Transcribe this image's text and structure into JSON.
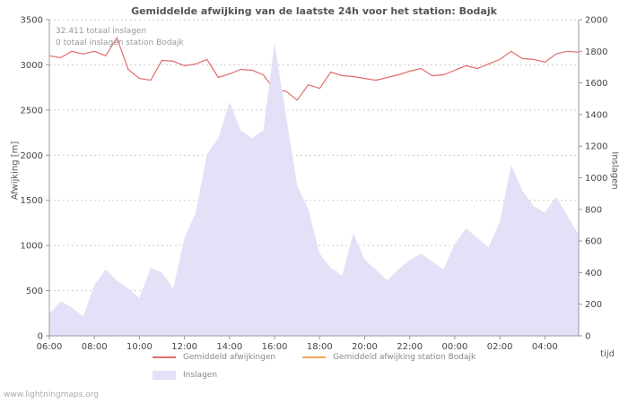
{
  "page": {
    "footer": "www.lightningmaps.org"
  },
  "chart": {
    "title": "Gemiddelde afwijking van de laatste 24h voor het station: Bodajk",
    "annotation_line1": "32.411 totaal inslagen",
    "annotation_line2": "0 totaal inslagen station Bodajk",
    "y_left_label": "Afwijking  [m]",
    "y_right_label": "Inslagen",
    "x_label": "tijd",
    "colors": {
      "deviation_line": "#e06c6c",
      "station_line": "#eda55f",
      "strikes_area": "#e2e1f7",
      "grid": "#cccccc",
      "spine": "#999999",
      "tick_text": "#444444"
    },
    "legend": [
      {
        "label": "Gemiddeld afwijkingen",
        "swatch": "line",
        "color": "#e06c6c"
      },
      {
        "label": "Gemiddeld afwijking station Bodajk",
        "swatch": "line",
        "color": "#eda55f"
      },
      {
        "label": "Inslagen",
        "swatch": "area",
        "color": "#e2e1f7"
      }
    ]
  },
  "chart_data": {
    "type": "line+area",
    "title": "Gemiddelde afwijking van de laatste 24h voor het station: Bodajk",
    "xlabel": "tijd",
    "ylabel_left": "Afwijking [m]",
    "ylabel_right": "Inslagen",
    "y_left": {
      "min": 0,
      "max": 3500,
      "ticks": [
        0,
        500,
        1000,
        1500,
        2000,
        2500,
        3000,
        3500
      ]
    },
    "y_right": {
      "min": 0,
      "max": 2000,
      "ticks": [
        0,
        200,
        400,
        600,
        800,
        1000,
        1200,
        1400,
        1600,
        1800,
        2000
      ]
    },
    "x": [
      "06:00",
      "06:30",
      "07:00",
      "07:30",
      "08:00",
      "08:30",
      "09:00",
      "09:30",
      "10:00",
      "10:30",
      "11:00",
      "11:30",
      "12:00",
      "12:30",
      "13:00",
      "13:30",
      "14:00",
      "14:30",
      "15:00",
      "15:30",
      "16:00",
      "16:30",
      "17:00",
      "17:30",
      "18:00",
      "18:30",
      "19:00",
      "19:30",
      "20:00",
      "20:30",
      "21:00",
      "21:30",
      "22:00",
      "22:30",
      "23:00",
      "23:30",
      "00:00",
      "00:30",
      "01:00",
      "01:30",
      "02:00",
      "02:30",
      "03:00",
      "03:30",
      "04:00",
      "04:30",
      "05:00",
      "05:30"
    ],
    "x_tick_labels": [
      "06:00",
      "08:00",
      "10:00",
      "12:00",
      "14:00",
      "16:00",
      "18:00",
      "20:00",
      "22:00",
      "00:00",
      "02:00",
      "04:00"
    ],
    "x_tick_indices": [
      0,
      4,
      8,
      12,
      16,
      20,
      24,
      28,
      32,
      36,
      40,
      44
    ],
    "grid": true,
    "legend_position": "bottom",
    "series": [
      {
        "name": "Gemiddeld afwijkingen",
        "type": "line",
        "axis": "left",
        "color": "#e06c6c",
        "values": [
          3100,
          3080,
          3150,
          3120,
          3150,
          3100,
          3300,
          2950,
          2850,
          2830,
          3050,
          3040,
          2990,
          3010,
          3060,
          2860,
          2900,
          2950,
          2940,
          2890,
          2720,
          2710,
          2610,
          2780,
          2740,
          2920,
          2880,
          2870,
          2850,
          2830,
          2860,
          2890,
          2930,
          2960,
          2880,
          2890,
          2940,
          2990,
          2960,
          3010,
          3060,
          3150,
          3070,
          3060,
          3030,
          3120,
          3150,
          3140
        ]
      },
      {
        "name": "Gemiddeld afwijking station Bodajk",
        "type": "line",
        "axis": "left",
        "color": "#eda55f",
        "values": []
      },
      {
        "name": "Inslagen",
        "type": "area",
        "axis": "right",
        "color": "#e2e1f7",
        "values": [
          140,
          220,
          180,
          120,
          320,
          420,
          350,
          300,
          240,
          430,
          400,
          300,
          620,
          780,
          1150,
          1250,
          1480,
          1300,
          1250,
          1300,
          1850,
          1400,
          950,
          800,
          520,
          430,
          380,
          650,
          480,
          420,
          350,
          420,
          480,
          520,
          470,
          420,
          580,
          680,
          620,
          560,
          720,
          1080,
          920,
          820,
          780,
          880,
          760,
          640
        ]
      }
    ]
  }
}
